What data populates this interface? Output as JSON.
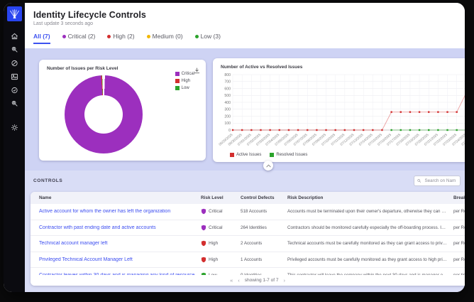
{
  "colors": {
    "accent_blue": "#3d52f0",
    "critical": "#9c2fbe",
    "high": "#d32f2f",
    "medium": "#f2b705",
    "low": "#2ba32b",
    "lavender": "#ced3f4",
    "lavender_light": "#d9ddf6",
    "sidebar": "#0b0b10",
    "logo_blue": "#2945f0",
    "link": "#3d4ef0"
  },
  "sidebar": {
    "items": [
      {
        "icon": "home"
      },
      {
        "icon": "user-search"
      },
      {
        "icon": "compass"
      },
      {
        "icon": "image"
      },
      {
        "icon": "check-circle"
      },
      {
        "icon": "user-search"
      }
    ],
    "bottom_items": [
      {
        "icon": "settings"
      }
    ]
  },
  "header": {
    "title": "Identity Lifecycle Controls",
    "subtitle": "Last update 3 seconds ago"
  },
  "tabs": [
    {
      "label": "All (7)",
      "active": true
    },
    {
      "label": "Critical (2)",
      "dot": "#9c2fbe"
    },
    {
      "label": "High (2)",
      "dot": "#d32f2f"
    },
    {
      "label": "Medium (0)",
      "dot": "#f2b705"
    },
    {
      "label": "Low (3)",
      "dot": "#2ba32b"
    }
  ],
  "chart_data": [
    {
      "type": "pie",
      "title": "Number of Issues per Risk Level",
      "labels": [
        "Critical",
        "High",
        "Low"
      ],
      "values": [
        782,
        3,
        1
      ],
      "colors": [
        "#9c2fbe",
        "#d32f2f",
        "#2ba32b"
      ],
      "legend_position": "right"
    },
    {
      "type": "line",
      "title": "Number of Active vs Resolved Issues",
      "x": [
        "06/29/2025",
        "06/30/2025",
        "07/01/2025",
        "07/02/2025",
        "07/03/2025",
        "07/04/2025",
        "07/05/2025",
        "07/06/2025",
        "07/07/2025",
        "07/08/2025",
        "07/09/2025",
        "07/10/2025",
        "07/11/2025",
        "07/12/2025",
        "07/13/2025",
        "07/14/2025",
        "07/15/2025",
        "07/16/2025",
        "07/17/2025",
        "07/18/2025",
        "07/19/2025",
        "07/20/2025",
        "07/21/2025",
        "07/22/2025",
        "07/23/2025",
        "07/24/2025",
        "07/25/2025"
      ],
      "series": [
        {
          "name": "Active Issues",
          "color": "#d32f2f",
          "values": [
            0,
            0,
            0,
            0,
            0,
            0,
            0,
            0,
            0,
            0,
            0,
            0,
            0,
            0,
            0,
            0,
            0,
            260,
            260,
            260,
            260,
            260,
            260,
            260,
            260,
            530,
            1000
          ]
        },
        {
          "name": "Resolved Issues",
          "color": "#2ba32b",
          "values": [
            null,
            null,
            null,
            null,
            null,
            null,
            null,
            null,
            null,
            null,
            null,
            null,
            null,
            null,
            null,
            null,
            null,
            0,
            0,
            0,
            0,
            0,
            0,
            0,
            0,
            0,
            0
          ]
        }
      ],
      "ylim": [
        0,
        800
      ],
      "yticks": [
        0,
        100,
        200,
        300,
        400,
        500,
        600,
        700,
        800
      ],
      "grid": true,
      "legend_position": "bottom"
    }
  ],
  "controls": {
    "section_label": "CONTROLS",
    "search_placeholder": "Search on Name",
    "columns": [
      "Name",
      "Risk Level",
      "Control Defects",
      "Risk Description",
      "Breakdown"
    ],
    "rows": [
      {
        "name": "Active account for whom the owner has left the organization",
        "risk": "Critical",
        "risk_color": "#9c2fbe",
        "defects": "518 Accounts",
        "description": "Accounts must be terminated upon their owner's departure, otherwise they can be used undetect...",
        "breakdown": "per Rep..."
      },
      {
        "name": "Contractor with past ending date and active accounts",
        "risk": "Critical",
        "risk_color": "#9c2fbe",
        "defects": "264 Identities",
        "description": "Contractors should be monitored carefully especially the off-boarding process. IT seems here tha...",
        "breakdown": "per Rep..."
      },
      {
        "name": "Technical account manager left",
        "risk": "High",
        "risk_color": "#d32f2f",
        "defects": "2 Accounts",
        "description": "Technical accounts must be carefully monitored as they can grant access to privileges, they must...",
        "breakdown": "per Rep..."
      },
      {
        "name": "Privileged Technical Account Manager Left",
        "risk": "High",
        "risk_color": "#d32f2f",
        "defects": "1 Accounts",
        "description": "Privileged accounts must be carefully monitored as they grant access to high privileges, they mus...",
        "breakdown": "per Rep..."
      },
      {
        "name": "Contractor leaves within 30 days and is managing any kind of resource",
        "risk": "Low",
        "risk_color": "#2ba32b",
        "defects": "0 Identities",
        "description": "This contractor will leave the company within the next 30 days and is manager of some resources...",
        "breakdown": "per tim..."
      }
    ],
    "pagination": {
      "first": "«",
      "prev": "‹",
      "text": "showing 1-7 of 7",
      "next": "›"
    }
  }
}
